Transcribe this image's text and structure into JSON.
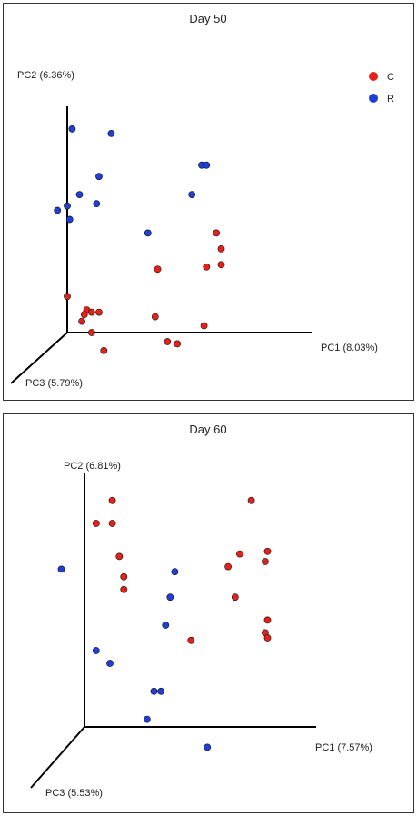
{
  "chart_data": [
    {
      "type": "scatter",
      "title": "Day 50",
      "axes": {
        "pc1": "PC1 (8.03%)",
        "pc2": "PC2 (6.36%)",
        "pc3": "PC3 (5.79%)"
      },
      "legend": {
        "placement": "top-right",
        "entries": [
          {
            "label": "C",
            "color": "#e8201a"
          },
          {
            "label": "R",
            "color": "#1f3fd6"
          }
        ]
      },
      "series": [
        {
          "name": "C",
          "color": "#e8201a",
          "points": [
            {
              "pc1": 0.0,
              "pc2": 0.16
            },
            {
              "pc1": 0.08,
              "pc2": 0.1
            },
            {
              "pc1": 0.1,
              "pc2": 0.09
            },
            {
              "pc1": 0.07,
              "pc2": 0.08
            },
            {
              "pc1": 0.06,
              "pc2": 0.05
            },
            {
              "pc1": 0.13,
              "pc2": 0.09
            },
            {
              "pc1": 0.1,
              "pc2": 0.0
            },
            {
              "pc1": 0.15,
              "pc2": -0.08
            },
            {
              "pc1": 0.37,
              "pc2": 0.28
            },
            {
              "pc1": 0.36,
              "pc2": 0.07
            },
            {
              "pc1": 0.41,
              "pc2": -0.04
            },
            {
              "pc1": 0.45,
              "pc2": -0.05
            },
            {
              "pc1": 0.56,
              "pc2": 0.03
            },
            {
              "pc1": 0.57,
              "pc2": 0.29
            },
            {
              "pc1": 0.61,
              "pc2": 0.44
            },
            {
              "pc1": 0.63,
              "pc2": 0.37
            },
            {
              "pc1": 0.63,
              "pc2": 0.3
            }
          ]
        },
        {
          "name": "R",
          "color": "#1f3fd6",
          "points": [
            {
              "pc1": 0.02,
              "pc2": 0.9
            },
            {
              "pc1": 0.18,
              "pc2": 0.88
            },
            {
              "pc1": 0.13,
              "pc2": 0.69
            },
            {
              "pc1": 0.05,
              "pc2": 0.61
            },
            {
              "pc1": -0.04,
              "pc2": 0.54
            },
            {
              "pc1": 0.0,
              "pc2": 0.56
            },
            {
              "pc1": 0.01,
              "pc2": 0.5
            },
            {
              "pc1": 0.12,
              "pc2": 0.57
            },
            {
              "pc1": 0.33,
              "pc2": 0.44
            },
            {
              "pc1": 0.51,
              "pc2": 0.61
            },
            {
              "pc1": 0.55,
              "pc2": 0.74
            },
            {
              "pc1": 0.57,
              "pc2": 0.74
            }
          ]
        }
      ]
    },
    {
      "type": "scatter",
      "title": "Day 60",
      "axes": {
        "pc1": "PC1 (7.57%)",
        "pc2": "PC2 (6.81%)",
        "pc3": "PC3 (5.53%)"
      },
      "series": [
        {
          "name": "C",
          "color": "#e8201a",
          "points": [
            {
              "pc1": 0.12,
              "pc2": 0.89
            },
            {
              "pc1": 0.05,
              "pc2": 0.8
            },
            {
              "pc1": 0.12,
              "pc2": 0.8
            },
            {
              "pc1": 0.15,
              "pc2": 0.67
            },
            {
              "pc1": 0.17,
              "pc2": 0.59
            },
            {
              "pc1": 0.17,
              "pc2": 0.54
            },
            {
              "pc1": 0.46,
              "pc2": 0.34
            },
            {
              "pc1": 0.62,
              "pc2": 0.63
            },
            {
              "pc1": 0.67,
              "pc2": 0.68
            },
            {
              "pc1": 0.72,
              "pc2": 0.89
            },
            {
              "pc1": 0.79,
              "pc2": 0.69
            },
            {
              "pc1": 0.78,
              "pc2": 0.65
            },
            {
              "pc1": 0.65,
              "pc2": 0.51
            },
            {
              "pc1": 0.79,
              "pc2": 0.42
            },
            {
              "pc1": 0.78,
              "pc2": 0.37
            },
            {
              "pc1": 0.79,
              "pc2": 0.35
            }
          ]
        },
        {
          "name": "R",
          "color": "#1f3fd6",
          "points": [
            {
              "pc1": -0.1,
              "pc2": 0.62
            },
            {
              "pc1": 0.05,
              "pc2": 0.3
            },
            {
              "pc1": 0.11,
              "pc2": 0.25
            },
            {
              "pc1": 0.39,
              "pc2": 0.61
            },
            {
              "pc1": 0.37,
              "pc2": 0.51
            },
            {
              "pc1": 0.35,
              "pc2": 0.4
            },
            {
              "pc1": 0.3,
              "pc2": 0.14
            },
            {
              "pc1": 0.33,
              "pc2": 0.14
            },
            {
              "pc1": 0.27,
              "pc2": 0.03
            },
            {
              "pc1": 0.53,
              "pc2": -0.08
            }
          ]
        }
      ]
    }
  ]
}
